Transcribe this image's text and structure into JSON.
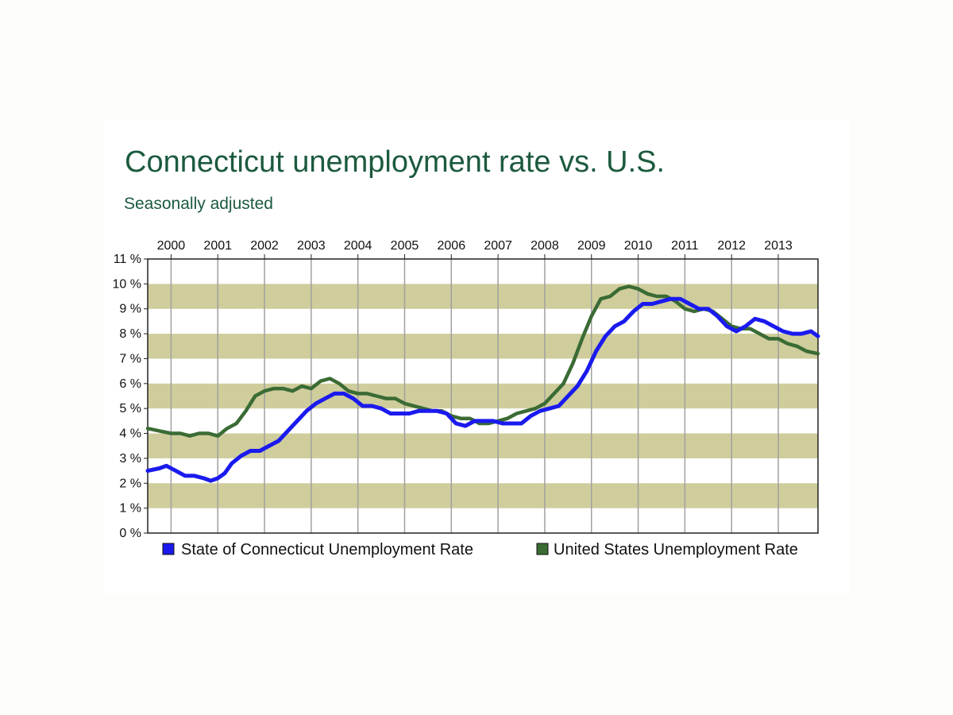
{
  "title": "Connecticut unemployment rate vs. U.S.",
  "subtitle": "Seasonally adjusted",
  "colors": {
    "band": "#cfcd9b",
    "grid": "#a0a0a0",
    "ct": "#1a1aee",
    "us": "#3a6b34",
    "title": "#1c5a3e"
  },
  "chart_data": {
    "type": "line",
    "title": "Connecticut unemployment rate vs. U.S.",
    "subtitle": "Seasonally adjusted",
    "xlabel": "",
    "ylabel": "",
    "xlim": [
      1999.5,
      2013.85
    ],
    "ylim": [
      0,
      11
    ],
    "x_ticks": [
      "2000",
      "2001",
      "2002",
      "2003",
      "2004",
      "2005",
      "2006",
      "2007",
      "2008",
      "2009",
      "2010",
      "2011",
      "2012",
      "2013"
    ],
    "y_ticks": [
      "0 %",
      "1 %",
      "2 %",
      "3 %",
      "4 %",
      "5 %",
      "6 %",
      "7 %",
      "8 %",
      "9 %",
      "10 %",
      "11 %"
    ],
    "grid": "vertical lines at years; alternating horizontal bands",
    "legend_position": "bottom",
    "series": [
      {
        "name": "State of Connecticut Unemployment Rate",
        "color": "#1a1aee",
        "x": [
          1999.5,
          1999.75,
          1999.9,
          2000.1,
          2000.3,
          2000.5,
          2000.7,
          2000.85,
          2001.0,
          2001.15,
          2001.3,
          2001.5,
          2001.7,
          2001.9,
          2002.1,
          2002.3,
          2002.5,
          2002.7,
          2002.9,
          2003.1,
          2003.3,
          2003.5,
          2003.7,
          2003.9,
          2004.1,
          2004.3,
          2004.5,
          2004.7,
          2004.9,
          2005.1,
          2005.3,
          2005.5,
          2005.7,
          2005.9,
          2006.1,
          2006.3,
          2006.5,
          2006.7,
          2006.9,
          2007.1,
          2007.3,
          2007.5,
          2007.7,
          2007.9,
          2008.1,
          2008.3,
          2008.5,
          2008.7,
          2008.9,
          2009.1,
          2009.3,
          2009.5,
          2009.7,
          2009.9,
          2010.1,
          2010.3,
          2010.5,
          2010.7,
          2010.9,
          2011.1,
          2011.3,
          2011.5,
          2011.7,
          2011.9,
          2012.1,
          2012.3,
          2012.5,
          2012.7,
          2012.9,
          2013.1,
          2013.3,
          2013.5,
          2013.7,
          2013.85
        ],
        "values": [
          2.5,
          2.6,
          2.7,
          2.5,
          2.3,
          2.3,
          2.2,
          2.1,
          2.2,
          2.4,
          2.8,
          3.1,
          3.3,
          3.3,
          3.5,
          3.7,
          4.1,
          4.5,
          4.9,
          5.2,
          5.4,
          5.6,
          5.6,
          5.4,
          5.1,
          5.1,
          5.0,
          4.8,
          4.8,
          4.8,
          4.9,
          4.9,
          4.9,
          4.8,
          4.4,
          4.3,
          4.5,
          4.5,
          4.5,
          4.4,
          4.4,
          4.4,
          4.7,
          4.9,
          5.0,
          5.1,
          5.5,
          5.9,
          6.5,
          7.3,
          7.9,
          8.3,
          8.5,
          8.9,
          9.2,
          9.2,
          9.3,
          9.4,
          9.4,
          9.2,
          9.0,
          9.0,
          8.7,
          8.3,
          8.1,
          8.3,
          8.6,
          8.5,
          8.3,
          8.1,
          8.0,
          8.0,
          8.1,
          7.9
        ]
      },
      {
        "name": "United States Unemployment Rate",
        "color": "#3a6b34",
        "x": [
          1999.5,
          1999.75,
          2000.0,
          2000.2,
          2000.4,
          2000.6,
          2000.8,
          2001.0,
          2001.2,
          2001.4,
          2001.6,
          2001.8,
          2002.0,
          2002.2,
          2002.4,
          2002.6,
          2002.8,
          2003.0,
          2003.2,
          2003.4,
          2003.6,
          2003.8,
          2004.0,
          2004.2,
          2004.4,
          2004.6,
          2004.8,
          2005.0,
          2005.2,
          2005.4,
          2005.6,
          2005.8,
          2006.0,
          2006.2,
          2006.4,
          2006.6,
          2006.8,
          2007.0,
          2007.2,
          2007.4,
          2007.6,
          2007.8,
          2008.0,
          2008.2,
          2008.4,
          2008.6,
          2008.8,
          2009.0,
          2009.2,
          2009.4,
          2009.6,
          2009.8,
          2010.0,
          2010.2,
          2010.4,
          2010.6,
          2010.8,
          2011.0,
          2011.2,
          2011.4,
          2011.6,
          2011.8,
          2012.0,
          2012.2,
          2012.4,
          2012.6,
          2012.8,
          2013.0,
          2013.2,
          2013.4,
          2013.6,
          2013.85
        ],
        "values": [
          4.2,
          4.1,
          4.0,
          4.0,
          3.9,
          4.0,
          4.0,
          3.9,
          4.2,
          4.4,
          4.9,
          5.5,
          5.7,
          5.8,
          5.8,
          5.7,
          5.9,
          5.8,
          6.1,
          6.2,
          6.0,
          5.7,
          5.6,
          5.6,
          5.5,
          5.4,
          5.4,
          5.2,
          5.1,
          5.0,
          4.9,
          4.9,
          4.7,
          4.6,
          4.6,
          4.4,
          4.4,
          4.5,
          4.6,
          4.8,
          4.9,
          5.0,
          5.2,
          5.6,
          6.0,
          6.8,
          7.8,
          8.7,
          9.4,
          9.5,
          9.8,
          9.9,
          9.8,
          9.6,
          9.5,
          9.5,
          9.3,
          9.0,
          8.9,
          9.0,
          8.9,
          8.6,
          8.3,
          8.2,
          8.2,
          8.0,
          7.8,
          7.8,
          7.6,
          7.5,
          7.3,
          7.2
        ]
      }
    ]
  },
  "legend": {
    "ct_label": "State of Connecticut Unemployment Rate",
    "us_label": "United States Unemployment Rate"
  }
}
